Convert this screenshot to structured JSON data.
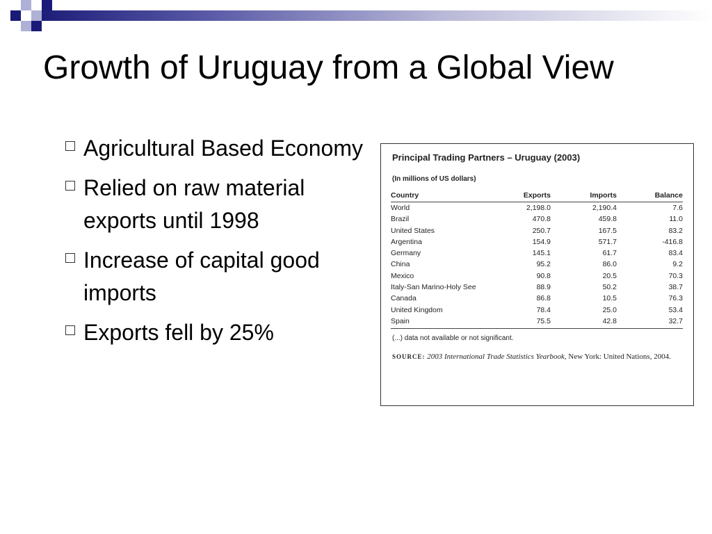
{
  "slide": {
    "title": "Growth of Uruguay from a Global View",
    "bullets": [
      "Agricultural Based Economy",
      "Relied on raw material exports until 1998",
      "Increase of capital good imports",
      "Exports fell by 25%"
    ]
  },
  "colors": {
    "navy": "#1a1a78",
    "light_square": "#aeb0d6"
  },
  "icons": {
    "bullet": "hollow-square-bullet-icon"
  },
  "table": {
    "title": "Principal Trading Partners – Uruguay (2003)",
    "subtitle": "(In millions of US dollars)",
    "columns": [
      "Country",
      "Exports",
      "Imports",
      "Balance"
    ],
    "rows": [
      [
        "World",
        "2,198.0",
        "2,190.4",
        "7.6"
      ],
      [
        "Brazil",
        "470.8",
        "459.8",
        "11.0"
      ],
      [
        "United States",
        "250.7",
        "167.5",
        "83.2"
      ],
      [
        "Argentina",
        "154.9",
        "571.7",
        "-416.8"
      ],
      [
        "Germany",
        "145.1",
        "61.7",
        "83.4"
      ],
      [
        "China",
        "95.2",
        "86.0",
        "9.2"
      ],
      [
        "Mexico",
        "90.8",
        "20.5",
        "70.3"
      ],
      [
        "Italy-San Marino-Holy See",
        "88.9",
        "50.2",
        "38.7"
      ],
      [
        "Canada",
        "86.8",
        "10.5",
        "76.3"
      ],
      [
        "United Kingdom",
        "78.4",
        "25.0",
        "53.4"
      ],
      [
        "Spain",
        "75.5",
        "42.8",
        "32.7"
      ]
    ],
    "note": "(...) data not available or not significant.",
    "source_label": "SOURCE:",
    "source_title": "2003 International Trade Statistics Yearbook",
    "source_rest": ", New York: United Nations, 2004."
  }
}
